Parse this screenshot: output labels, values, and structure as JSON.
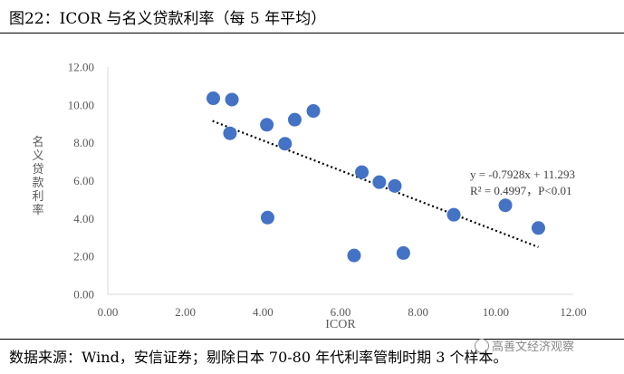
{
  "header": {
    "title": "图22：ICOR 与名义贷款利率（每 5 年平均）"
  },
  "footer": {
    "source": "数据来源：Wind，安信证券；剔除日本 70-80 年代利率管制时期 3 个样本。",
    "watermark": "高善文经济观察"
  },
  "chart_data": {
    "type": "scatter",
    "title": "",
    "xlabel": "ICOR",
    "ylabel": "名义贷款利率",
    "xlim": [
      0,
      12
    ],
    "ylim": [
      0,
      12
    ],
    "x_ticks": [
      "0.00",
      "2.00",
      "4.00",
      "6.00",
      "8.00",
      "10.00",
      "12.00"
    ],
    "y_ticks": [
      "0.00",
      "2.00",
      "4.00",
      "6.00",
      "8.00",
      "10.00",
      "12.00"
    ],
    "grid": false,
    "points": [
      {
        "x": 2.72,
        "y": 10.35
      },
      {
        "x": 3.2,
        "y": 10.28
      },
      {
        "x": 3.15,
        "y": 8.5
      },
      {
        "x": 4.1,
        "y": 8.95
      },
      {
        "x": 4.12,
        "y": 4.05
      },
      {
        "x": 4.57,
        "y": 7.95
      },
      {
        "x": 4.82,
        "y": 9.22
      },
      {
        "x": 5.3,
        "y": 9.68
      },
      {
        "x": 6.35,
        "y": 2.05
      },
      {
        "x": 6.55,
        "y": 6.45
      },
      {
        "x": 7.0,
        "y": 5.92
      },
      {
        "x": 7.4,
        "y": 5.72
      },
      {
        "x": 7.62,
        "y": 2.18
      },
      {
        "x": 8.92,
        "y": 4.2
      },
      {
        "x": 10.25,
        "y": 4.7
      },
      {
        "x": 11.1,
        "y": 3.5
      }
    ],
    "trendline": {
      "slope": -0.7928,
      "intercept": 11.293,
      "x_range": [
        2.7,
        11.1
      ]
    },
    "annotations": [
      "y = -0.7928x + 11.293",
      "R² = 0.4997，P<0.01"
    ],
    "colors": {
      "point": "#4472C4",
      "trendline": "#000000",
      "axis": "#D9D9D9"
    }
  }
}
